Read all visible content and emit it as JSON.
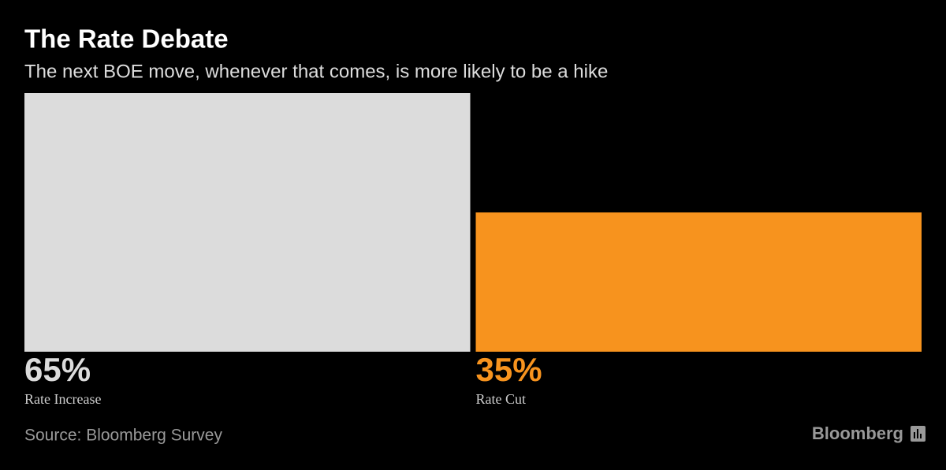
{
  "chart_data": {
    "type": "bar",
    "title": "The Rate Debate",
    "subtitle": "The next BOE move, whenever that comes, is more likely to be a hike",
    "categories": [
      "Rate Increase",
      "Rate Cut"
    ],
    "values": [
      65,
      35
    ],
    "value_labels": [
      "65%",
      "35%"
    ],
    "colors": [
      "#dcdcdc",
      "#f7931e"
    ],
    "source": "Source: Bloomberg Survey",
    "brand": "Bloomberg"
  }
}
